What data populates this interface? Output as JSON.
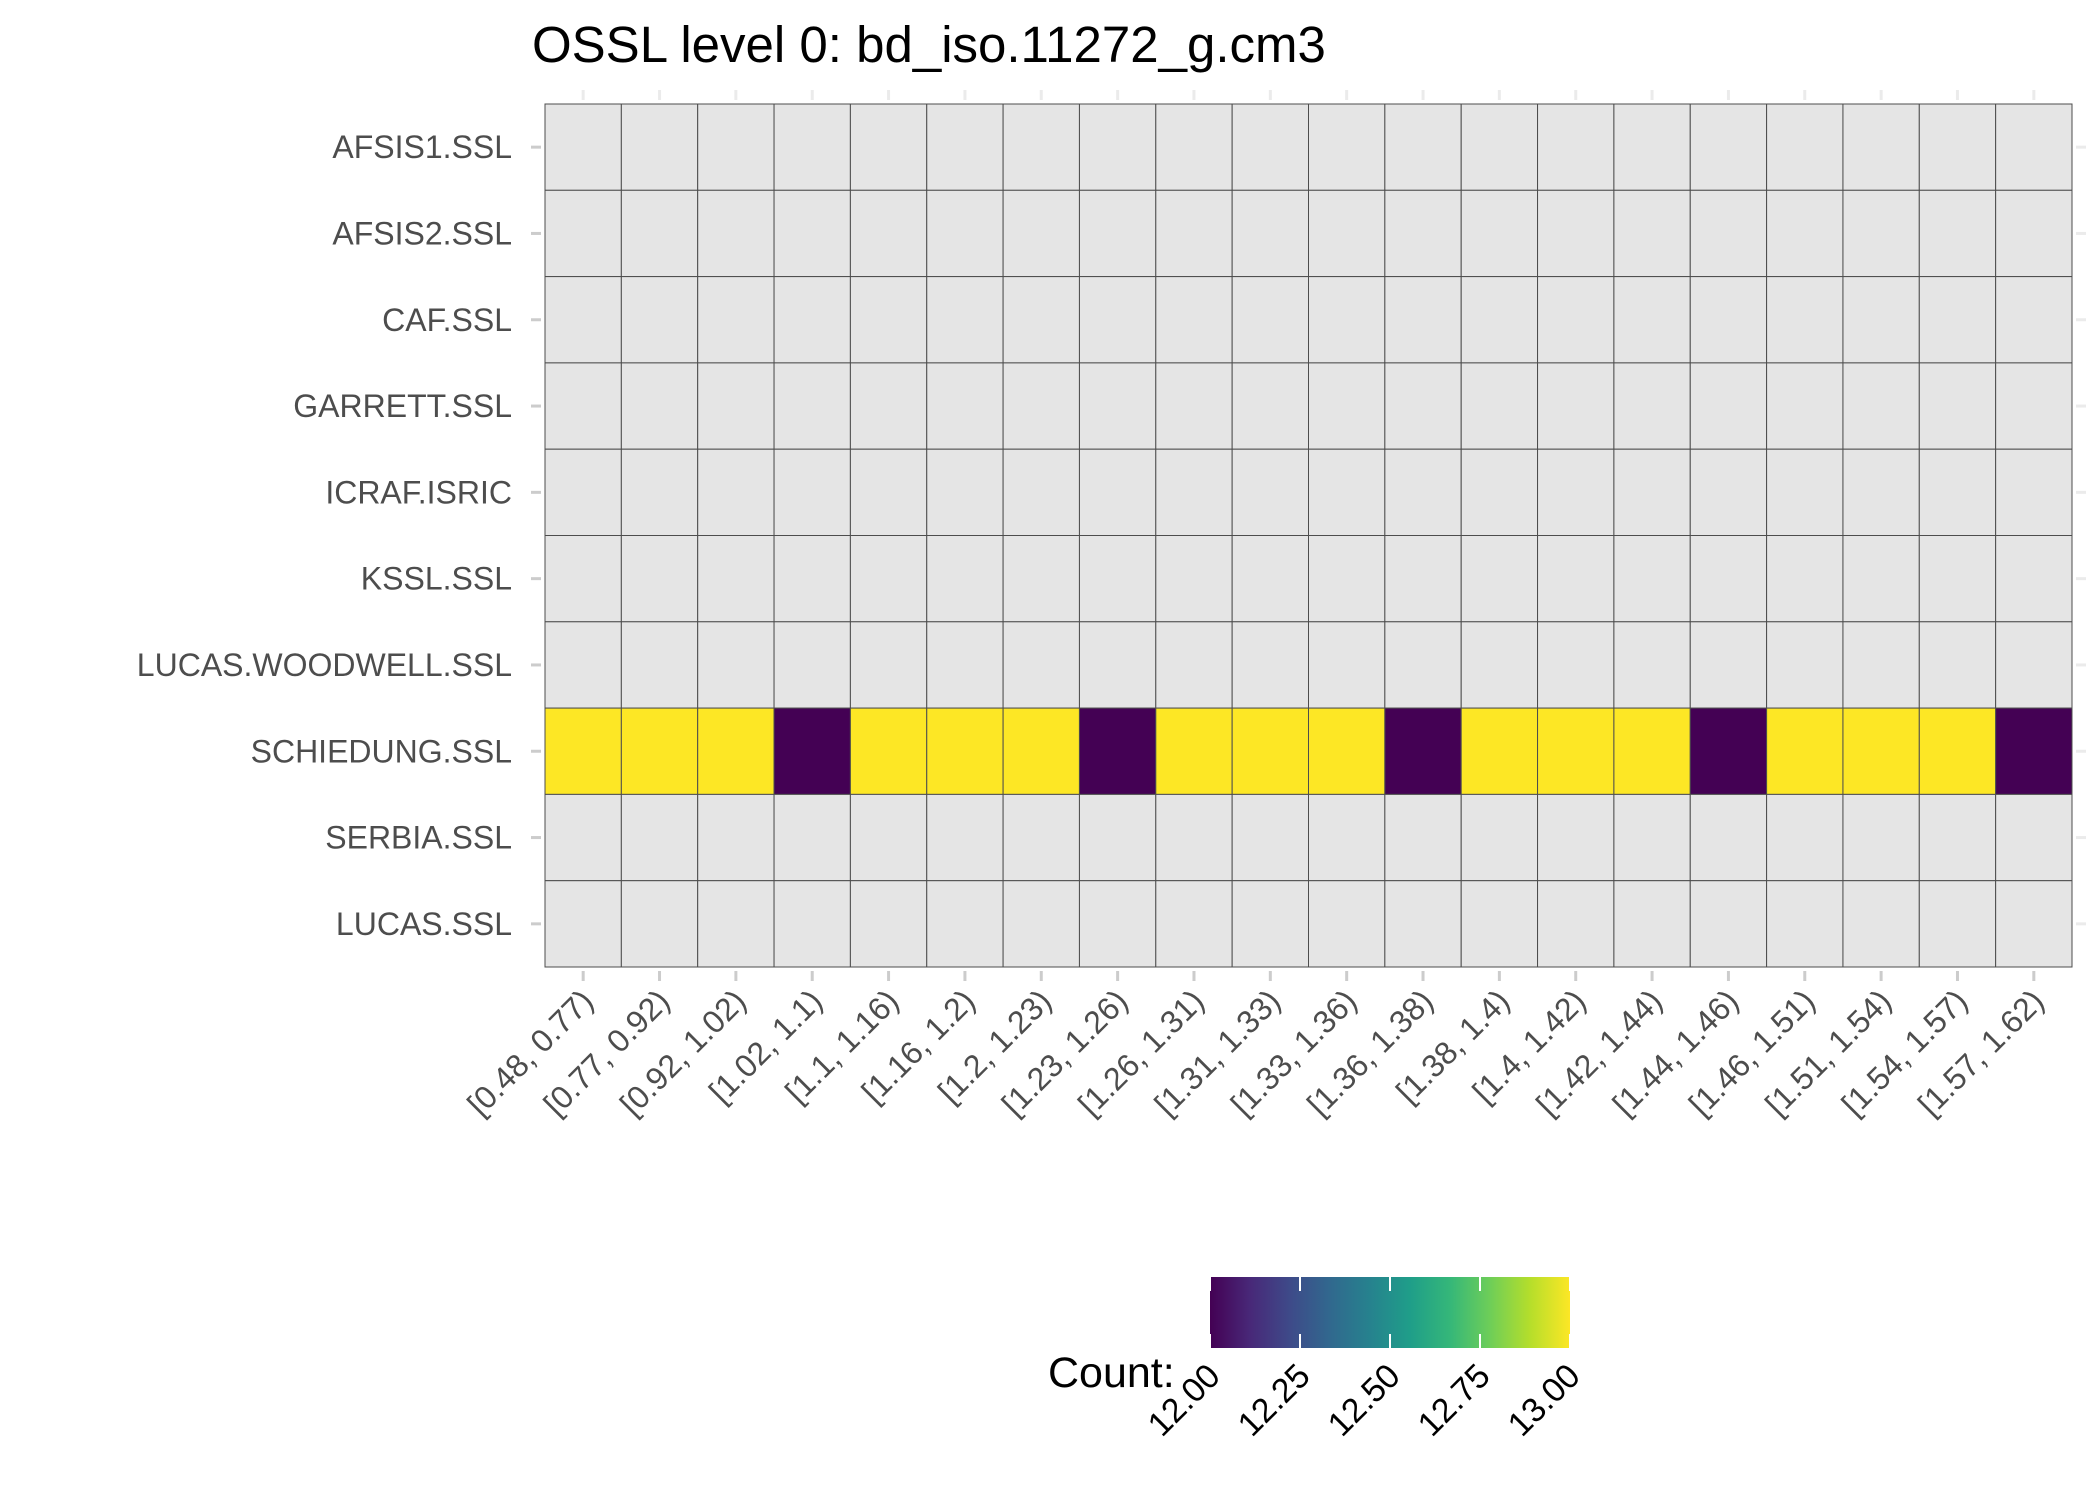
{
  "chart_data": {
    "type": "heatmap",
    "title": "OSSL level 0: bd_iso.11272_g.cm3",
    "xlabel": "",
    "ylabel": "",
    "x_categories": [
      "[0.48, 0.77)",
      "[0.77, 0.92)",
      "[0.92, 1.02)",
      "[1.02, 1.1)",
      "[1.1, 1.16)",
      "[1.16, 1.2)",
      "[1.2, 1.23)",
      "[1.23, 1.26)",
      "[1.26, 1.31)",
      "[1.31, 1.33)",
      "[1.33, 1.36)",
      "[1.36, 1.38)",
      "[1.38, 1.4)",
      "[1.4, 1.42)",
      "[1.42, 1.44)",
      "[1.44, 1.46)",
      "[1.46, 1.51)",
      "[1.51, 1.54)",
      "[1.54, 1.57)",
      "[1.57, 1.62)"
    ],
    "y_categories": [
      "AFSIS1.SSL",
      "AFSIS2.SSL",
      "CAF.SSL",
      "GARRETT.SSL",
      "ICRAF.ISRIC",
      "KSSL.SSL",
      "LUCAS.WOODWELL.SSL",
      "SCHIEDUNG.SSL",
      "SERBIA.SSL",
      "LUCAS.SSL"
    ],
    "values": [
      [
        null,
        null,
        null,
        null,
        null,
        null,
        null,
        null,
        null,
        null,
        null,
        null,
        null,
        null,
        null,
        null,
        null,
        null,
        null,
        null
      ],
      [
        null,
        null,
        null,
        null,
        null,
        null,
        null,
        null,
        null,
        null,
        null,
        null,
        null,
        null,
        null,
        null,
        null,
        null,
        null,
        null
      ],
      [
        null,
        null,
        null,
        null,
        null,
        null,
        null,
        null,
        null,
        null,
        null,
        null,
        null,
        null,
        null,
        null,
        null,
        null,
        null,
        null
      ],
      [
        null,
        null,
        null,
        null,
        null,
        null,
        null,
        null,
        null,
        null,
        null,
        null,
        null,
        null,
        null,
        null,
        null,
        null,
        null,
        null
      ],
      [
        null,
        null,
        null,
        null,
        null,
        null,
        null,
        null,
        null,
        null,
        null,
        null,
        null,
        null,
        null,
        null,
        null,
        null,
        null,
        null
      ],
      [
        null,
        null,
        null,
        null,
        null,
        null,
        null,
        null,
        null,
        null,
        null,
        null,
        null,
        null,
        null,
        null,
        null,
        null,
        null,
        null
      ],
      [
        null,
        null,
        null,
        null,
        null,
        null,
        null,
        null,
        null,
        null,
        null,
        null,
        null,
        null,
        null,
        null,
        null,
        null,
        null,
        null
      ],
      [
        13,
        13,
        13,
        12,
        13,
        13,
        13,
        12,
        13,
        13,
        13,
        12,
        13,
        13,
        13,
        12,
        13,
        13,
        13,
        12
      ],
      [
        null,
        null,
        null,
        null,
        null,
        null,
        null,
        null,
        null,
        null,
        null,
        null,
        null,
        null,
        null,
        null,
        null,
        null,
        null,
        null
      ],
      [
        null,
        null,
        null,
        null,
        null,
        null,
        null,
        null,
        null,
        null,
        null,
        null,
        null,
        null,
        null,
        null,
        null,
        null,
        null,
        null
      ]
    ],
    "missing_color": "#e5e5e5",
    "cell_border_color": "#4d4d4d",
    "colorscale": "viridis",
    "colorscale_stops": [
      "#440154",
      "#482878",
      "#3e4a89",
      "#31688e",
      "#26828e",
      "#1f9e89",
      "#35b779",
      "#6ece58",
      "#b5de2b",
      "#fde725"
    ],
    "legend": {
      "title": "Count:",
      "position": "bottom",
      "range": [
        12,
        13
      ],
      "ticks": [
        "12.00",
        "12.25",
        "12.50",
        "12.75",
        "13.00"
      ]
    }
  }
}
